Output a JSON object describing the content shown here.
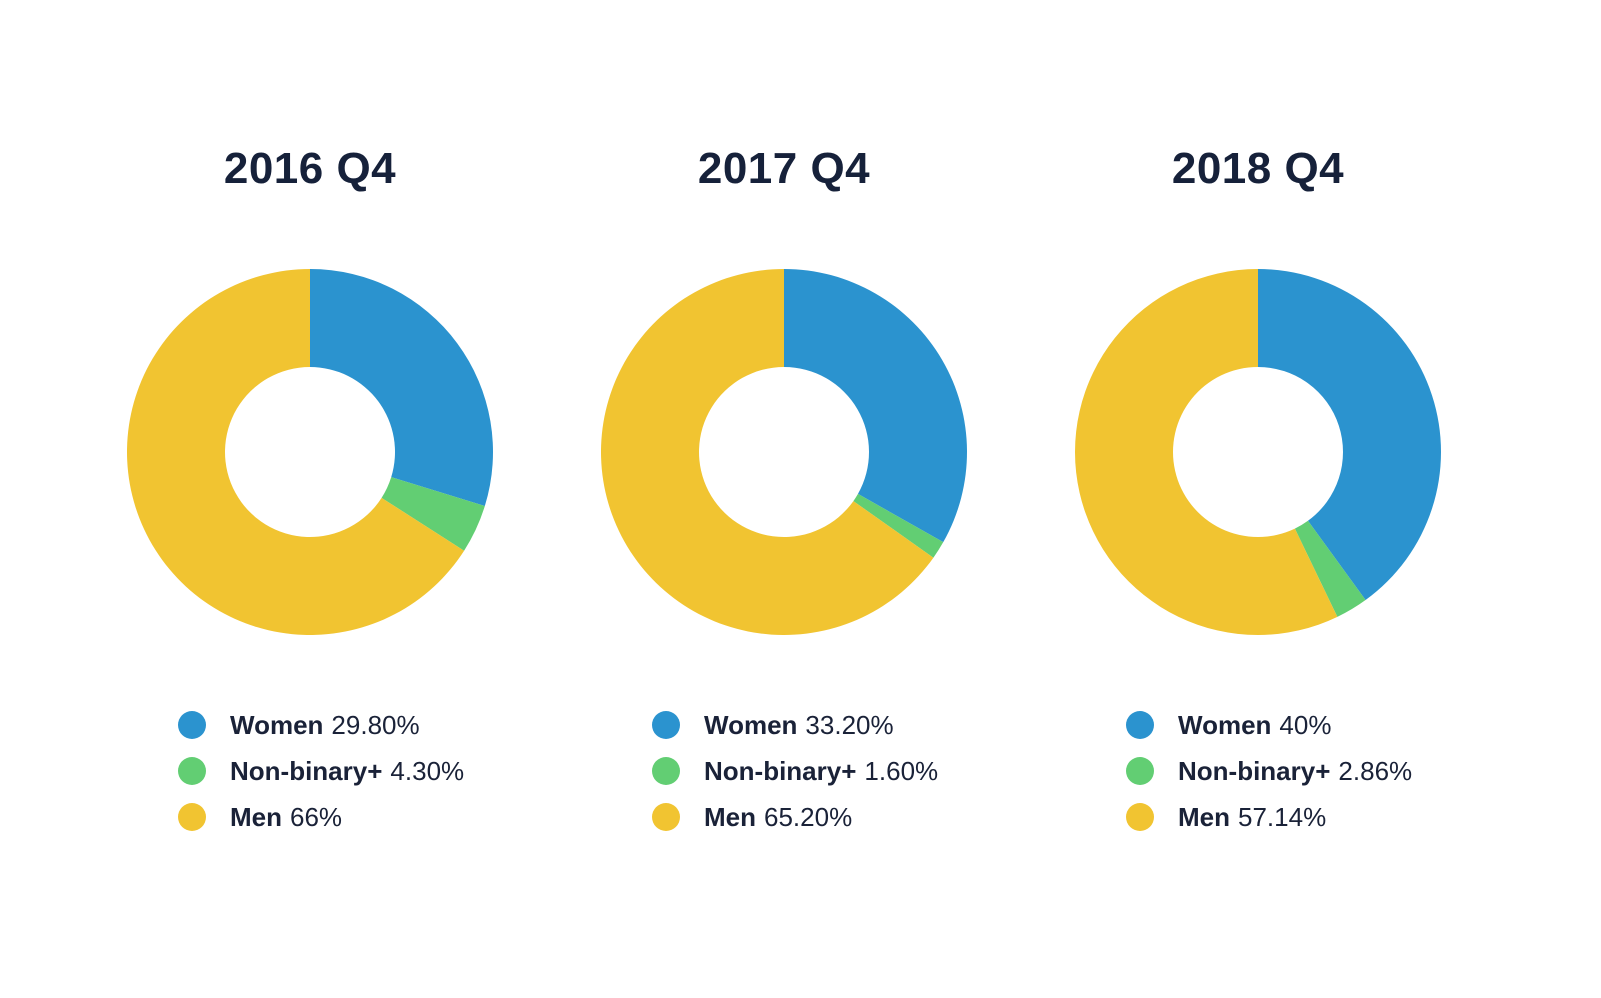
{
  "chart_data": [
    {
      "type": "pie",
      "title": "2016 Q4",
      "categories": [
        "Women",
        "Non-binary+",
        "Men"
      ],
      "values": [
        29.8,
        4.3,
        66
      ],
      "value_labels": [
        "29.80%",
        "4.30%",
        "66%"
      ],
      "colors": [
        "#2b93cf",
        "#62ce73",
        "#f1c431"
      ],
      "donut": true,
      "legend": "bottom"
    },
    {
      "type": "pie",
      "title": "2017 Q4",
      "categories": [
        "Women",
        "Non-binary+",
        "Men"
      ],
      "values": [
        33.2,
        1.6,
        65.2
      ],
      "value_labels": [
        "33.20%",
        "1.60%",
        "65.20%"
      ],
      "colors": [
        "#2b93cf",
        "#62ce73",
        "#f1c431"
      ],
      "donut": true,
      "legend": "bottom"
    },
    {
      "type": "pie",
      "title": "2018 Q4",
      "categories": [
        "Women",
        "Non-binary+",
        "Men"
      ],
      "values": [
        40,
        2.86,
        57.14
      ],
      "value_labels": [
        "40%",
        "2.86%",
        "57.14%"
      ],
      "colors": [
        "#2b93cf",
        "#62ce73",
        "#f1c431"
      ],
      "donut": true,
      "legend": "bottom"
    }
  ]
}
